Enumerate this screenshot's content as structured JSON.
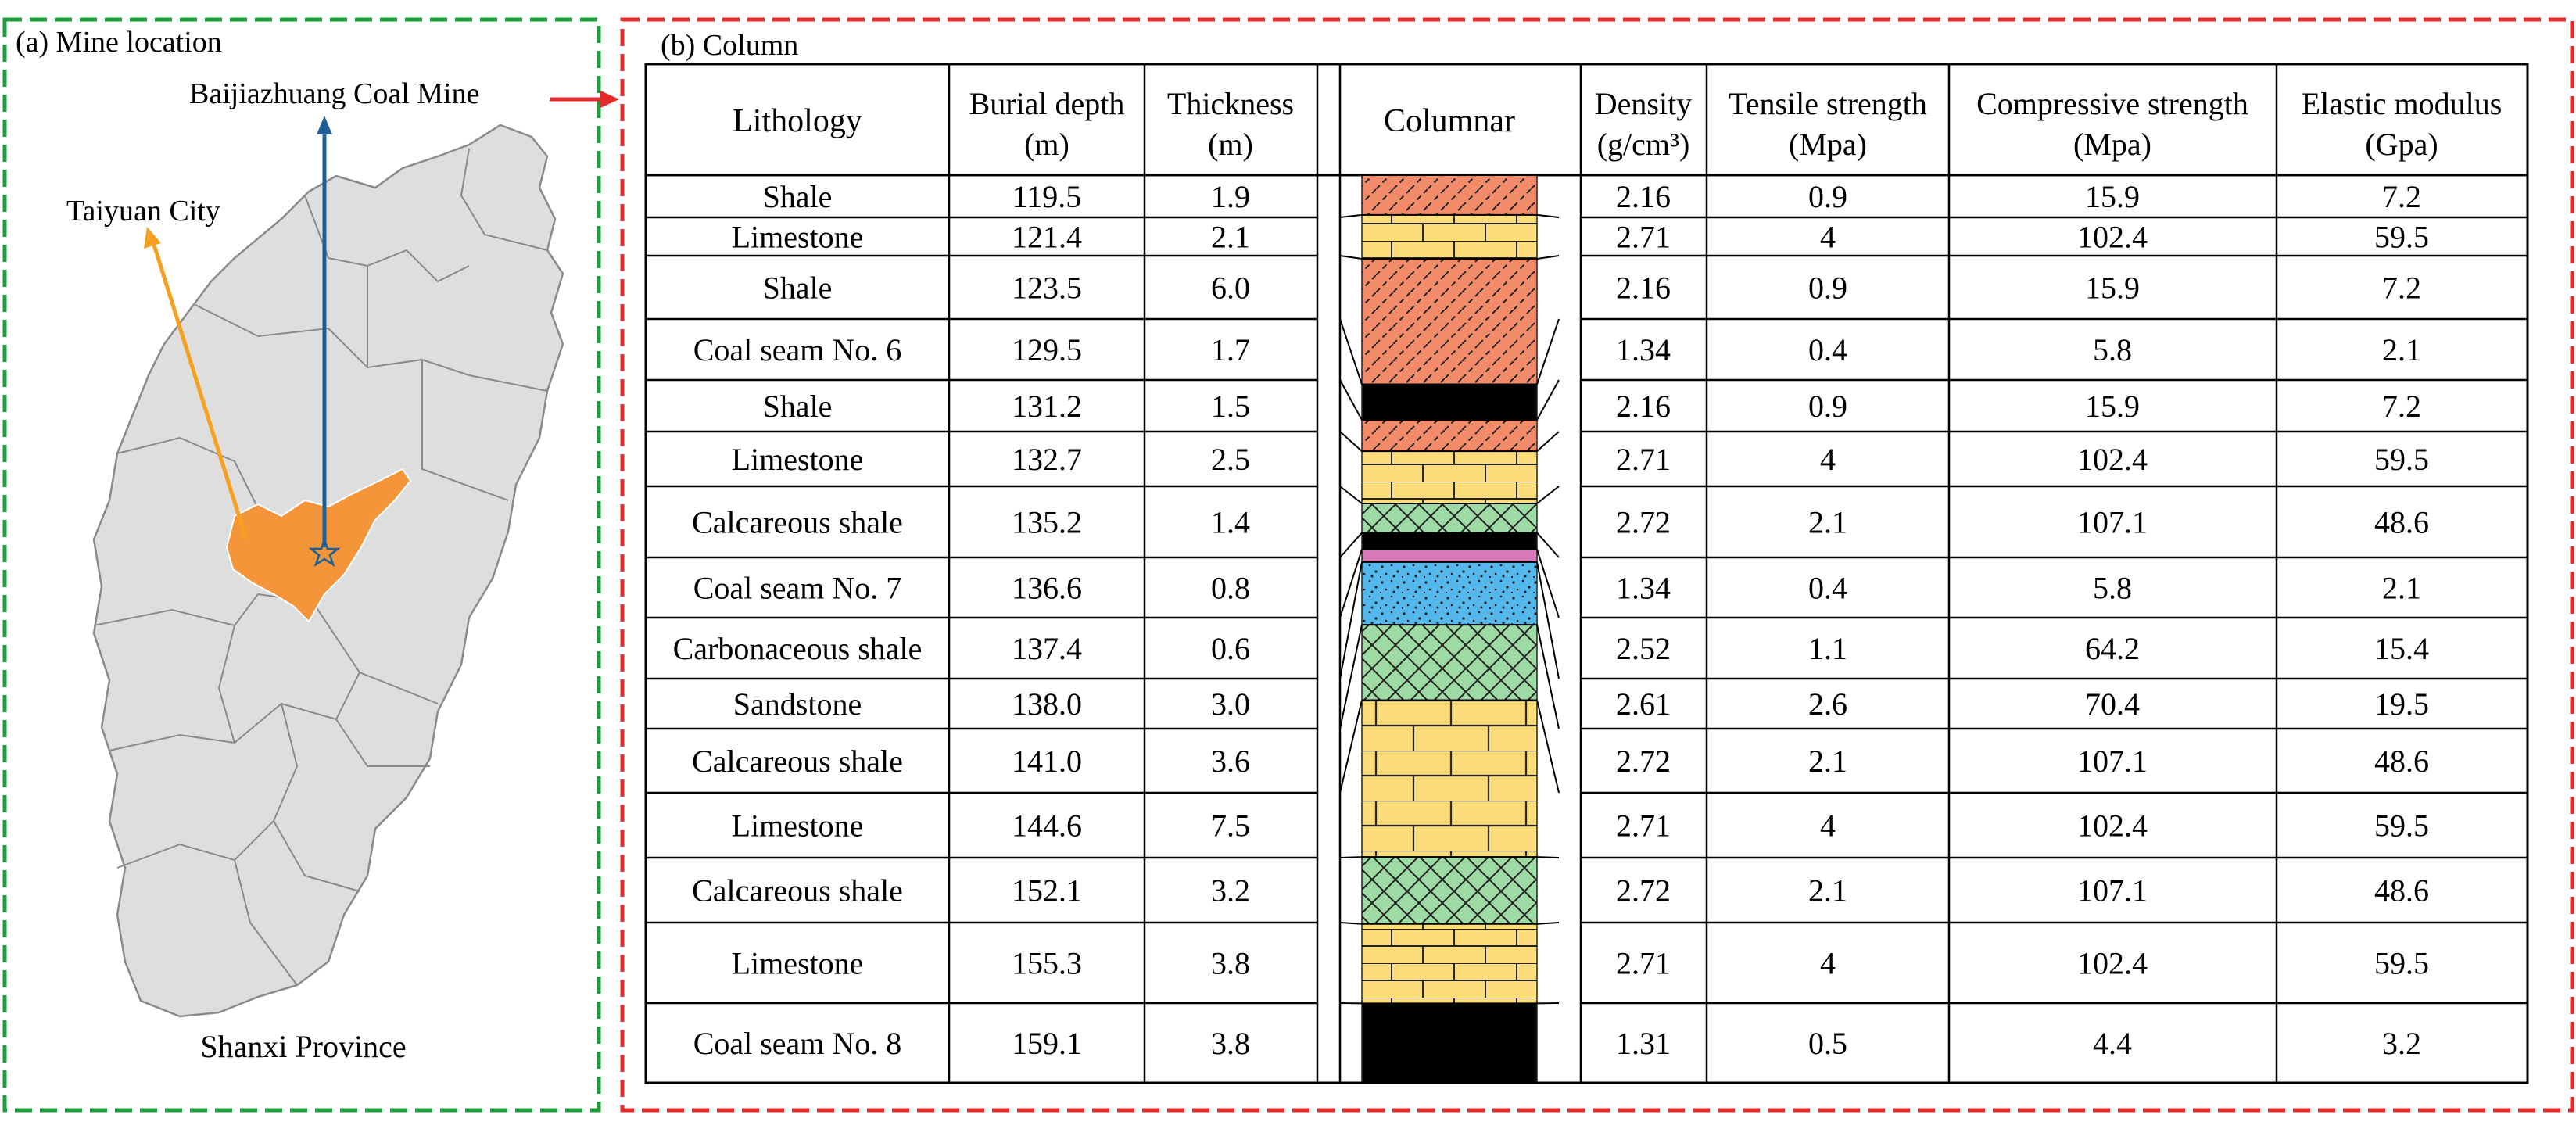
{
  "panel_a": {
    "title": "(a) Mine location",
    "province_label": "Shanxi Province",
    "mine_label": "Baijiazhuang Coal Mine",
    "city_label": "Taiyuan City",
    "colors": {
      "frame": "#1e9e3a",
      "city_region": "#f5953a",
      "map_fill": "#dedede",
      "mine_arrow": "#1f5f96",
      "city_arrow": "#f5a021"
    }
  },
  "panel_b": {
    "title": "(b) Column",
    "frame_color": "#e52a2a",
    "headers": {
      "lithology": "Lithology",
      "burial_depth": [
        "Burial depth",
        "(m)"
      ],
      "thickness": [
        "Thickness",
        "(m)"
      ],
      "columnar": "Columnar",
      "density": [
        "Density",
        "(g/cm³)"
      ],
      "tensile": [
        "Tensile strength",
        "(Mpa)"
      ],
      "compressive": [
        "Compressive strength",
        "(Mpa)"
      ],
      "elastic": [
        "Elastic modulus",
        "(Gpa)"
      ]
    },
    "rows": [
      {
        "lithology": "Shale",
        "depth": "119.5",
        "thickness": "1.9",
        "density": "2.16",
        "tensile": "0.9",
        "compressive": "15.9",
        "elastic": "7.2"
      },
      {
        "lithology": "Limestone",
        "depth": "121.4",
        "thickness": "2.1",
        "density": "2.71",
        "tensile": "4",
        "compressive": "102.4",
        "elastic": "59.5"
      },
      {
        "lithology": "Shale",
        "depth": "123.5",
        "thickness": "6.0",
        "density": "2.16",
        "tensile": "0.9",
        "compressive": "15.9",
        "elastic": "7.2"
      },
      {
        "lithology": "Coal seam No. 6",
        "depth": "129.5",
        "thickness": "1.7",
        "density": "1.34",
        "tensile": "0.4",
        "compressive": "5.8",
        "elastic": "2.1"
      },
      {
        "lithology": "Shale",
        "depth": "131.2",
        "thickness": "1.5",
        "density": "2.16",
        "tensile": "0.9",
        "compressive": "15.9",
        "elastic": "7.2"
      },
      {
        "lithology": "Limestone",
        "depth": "132.7",
        "thickness": "2.5",
        "density": "2.71",
        "tensile": "4",
        "compressive": "102.4",
        "elastic": "59.5"
      },
      {
        "lithology": "Calcareous shale",
        "depth": "135.2",
        "thickness": "1.4",
        "density": "2.72",
        "tensile": "2.1",
        "compressive": "107.1",
        "elastic": "48.6"
      },
      {
        "lithology": "Coal seam No. 7",
        "depth": "136.6",
        "thickness": "0.8",
        "density": "1.34",
        "tensile": "0.4",
        "compressive": "5.8",
        "elastic": "2.1"
      },
      {
        "lithology": "Carbonaceous shale",
        "depth": "137.4",
        "thickness": "0.6",
        "density": "2.52",
        "tensile": "1.1",
        "compressive": "64.2",
        "elastic": "15.4"
      },
      {
        "lithology": "Sandstone",
        "depth": "138.0",
        "thickness": "3.0",
        "density": "2.61",
        "tensile": "2.6",
        "compressive": "70.4",
        "elastic": "19.5"
      },
      {
        "lithology": "Calcareous shale",
        "depth": "141.0",
        "thickness": "3.6",
        "density": "2.72",
        "tensile": "2.1",
        "compressive": "107.1",
        "elastic": "48.6"
      },
      {
        "lithology": "Limestone",
        "depth": "144.6",
        "thickness": "7.5",
        "density": "2.71",
        "tensile": "4",
        "compressive": "102.4",
        "elastic": "59.5"
      },
      {
        "lithology": "Calcareous shale",
        "depth": "152.1",
        "thickness": "3.2",
        "density": "2.72",
        "tensile": "2.1",
        "compressive": "107.1",
        "elastic": "48.6"
      },
      {
        "lithology": "Limestone",
        "depth": "155.3",
        "thickness": "3.8",
        "density": "2.71",
        "tensile": "4",
        "compressive": "102.4",
        "elastic": "59.5"
      },
      {
        "lithology": "Coal seam No. 8",
        "depth": "159.1",
        "thickness": "3.8",
        "density": "1.31",
        "tensile": "0.5",
        "compressive": "4.4",
        "elastic": "3.2"
      }
    ],
    "column_layers": [
      {
        "rock": "shale",
        "thickness": 1.9
      },
      {
        "rock": "limestone",
        "thickness": 2.1
      },
      {
        "rock": "shale",
        "thickness": 6.0
      },
      {
        "rock": "coal",
        "thickness": 1.7
      },
      {
        "rock": "shale",
        "thickness": 1.5
      },
      {
        "rock": "limestone",
        "thickness": 2.5
      },
      {
        "rock": "calcareous-shale",
        "thickness": 1.4
      },
      {
        "rock": "coal",
        "thickness": 0.8
      },
      {
        "rock": "carbonaceous-shale",
        "thickness": 0.6
      },
      {
        "rock": "sandstone",
        "thickness": 3.0
      },
      {
        "rock": "calcareous-shale",
        "thickness": 3.6
      },
      {
        "rock": "limestone",
        "thickness": 7.5
      },
      {
        "rock": "calcareous-shale",
        "thickness": 3.2
      },
      {
        "rock": "limestone",
        "thickness": 3.8
      },
      {
        "rock": "coal",
        "thickness": 3.8
      }
    ],
    "rock_colors": {
      "shale": "#f28b6a",
      "limestone": "#fddc7a",
      "coal": "#000000",
      "calcareous-shale": "#9edba4",
      "carbonaceous-shale": "#d87ab8",
      "sandstone": "#55b8ec"
    }
  }
}
